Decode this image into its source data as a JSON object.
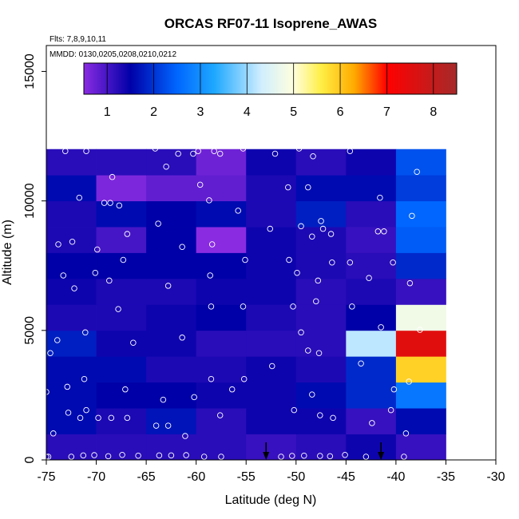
{
  "chart_data": {
    "type": "heatmap",
    "title": "ORCAS RF07-11 Isoprene_AWAS",
    "notes": [
      "Flts: 7,8,9,10,11",
      "MMDD: 0130,0205,0208,0210,0212"
    ],
    "xlabel": "Latitude (deg N)",
    "ylabel": "Altitude (m)",
    "xlim": [
      -75,
      -30
    ],
    "ylim": [
      0,
      16000
    ],
    "x_ticks": [
      -75,
      -70,
      -65,
      -60,
      -55,
      -50,
      -45,
      -40,
      -35,
      -30
    ],
    "x_tick_labels": [
      "-75",
      "-70",
      "-65",
      "-60",
      "-55",
      "-50",
      "-45",
      "-40",
      "-35",
      "-30"
    ],
    "y_ticks": [
      0,
      5000,
      10000,
      15000
    ],
    "y_tick_labels": [
      "0",
      "5000",
      "10000",
      "15000"
    ],
    "x_bin_edges": [
      -75,
      -70,
      -65,
      -60,
      -55,
      -50,
      -45,
      -40,
      -35
    ],
    "y_bin_edges": [
      0,
      1000,
      2000,
      3000,
      4000,
      5000,
      6000,
      7000,
      8000,
      9000,
      10000,
      11000,
      12000
    ],
    "grid": [
      [
        1.2,
        1.2,
        1.2,
        1.2,
        1.1,
        1.2,
        1.4,
        1.1
      ],
      [
        1.6,
        1.3,
        1.7,
        1.2,
        1.4,
        1.4,
        1.1,
        1.6
      ],
      [
        1.6,
        1.5,
        1.5,
        1.4,
        1.4,
        1.6,
        1.9,
        2.7
      ],
      [
        1.6,
        1.6,
        1.3,
        1.3,
        1.4,
        1.3,
        1.9,
        5.9
      ],
      [
        1.8,
        1.4,
        1.4,
        1.2,
        1.2,
        1.2,
        4.2,
        7.5
      ],
      [
        1.3,
        1.3,
        1.4,
        1.5,
        1.3,
        1.2,
        1.5,
        4.8
      ],
      [
        1.4,
        1.3,
        1.3,
        1.4,
        1.4,
        1.2,
        1.3,
        1.1
      ],
      [
        1.5,
        1.5,
        1.5,
        1.5,
        1.4,
        1.3,
        1.2,
        1.9
      ],
      [
        1.3,
        1.0,
        1.5,
        0.4,
        1.4,
        1.3,
        1.1,
        2.4
      ],
      [
        1.3,
        1.6,
        1.5,
        1.6,
        1.3,
        1.8,
        1.2,
        2.5
      ],
      [
        1.6,
        0.6,
        0.8,
        0.8,
        1.3,
        1.6,
        1.6,
        2.1
      ],
      [
        1.2,
        1.2,
        1.2,
        0.7,
        1.4,
        1.2,
        1.4,
        2.3
      ]
    ],
    "colorbar": {
      "range": [
        0.5,
        8.5
      ],
      "ticks": [
        1,
        2,
        3,
        4,
        5,
        6,
        7,
        8
      ],
      "tick_labels": [
        "1",
        "2",
        "3",
        "4",
        "5",
        "6",
        "7",
        "8"
      ],
      "stops": [
        {
          "v": 0.5,
          "c": "#8a2be2"
        },
        {
          "v": 1.5,
          "c": "#0000a8"
        },
        {
          "v": 2.5,
          "c": "#0066ff"
        },
        {
          "v": 3.3,
          "c": "#1ea8ff"
        },
        {
          "v": 4.3,
          "c": "#cfeeff"
        },
        {
          "v": 5.0,
          "c": "#ffffdd"
        },
        {
          "v": 5.6,
          "c": "#ffee44"
        },
        {
          "v": 6.3,
          "c": "#ffaa00"
        },
        {
          "v": 7.0,
          "c": "#ff0000"
        },
        {
          "v": 8.5,
          "c": "#a52a2a"
        }
      ]
    },
    "arrows_latitude": [
      -53,
      -41.5
    ],
    "samples": [
      [
        -75,
        0
      ],
      [
        -74.8,
        0
      ],
      [
        -72.5,
        0
      ],
      [
        -71.3,
        50
      ],
      [
        -70.2,
        60
      ],
      [
        -68.8,
        20
      ],
      [
        -67.4,
        70
      ],
      [
        -65.8,
        40
      ],
      [
        -63.7,
        50
      ],
      [
        -62.5,
        50
      ],
      [
        -61.0,
        60
      ],
      [
        -59.2,
        0
      ],
      [
        -57.5,
        0
      ],
      [
        -51.5,
        0
      ],
      [
        -50.4,
        30
      ],
      [
        -49.2,
        40
      ],
      [
        -47.6,
        30
      ],
      [
        -46.6,
        20
      ],
      [
        -45.1,
        70
      ],
      [
        -43.0,
        0
      ],
      [
        -39.2,
        0
      ],
      [
        -74.3,
        900
      ],
      [
        -72.8,
        1700
      ],
      [
        -71.6,
        1500
      ],
      [
        -71.0,
        1800
      ],
      [
        -69.8,
        1500
      ],
      [
        -68.5,
        1500
      ],
      [
        -66.9,
        1500
      ],
      [
        -64.0,
        1200
      ],
      [
        -62.8,
        1200
      ],
      [
        -61.1,
        800
      ],
      [
        -60.2,
        2300
      ],
      [
        -57.6,
        1600
      ],
      [
        -56.4,
        2600
      ],
      [
        -50.2,
        1800
      ],
      [
        -48.4,
        2400
      ],
      [
        -47.6,
        1600
      ],
      [
        -46.3,
        1500
      ],
      [
        -42.4,
        1300
      ],
      [
        -40.5,
        1800
      ],
      [
        -39.0,
        900
      ],
      [
        -75.0,
        2500
      ],
      [
        -74.6,
        4000
      ],
      [
        -72.9,
        2700
      ],
      [
        -71.2,
        3000
      ],
      [
        -67.1,
        2600
      ],
      [
        -63.3,
        2200
      ],
      [
        -58.5,
        3000
      ],
      [
        -55.2,
        3000
      ],
      [
        -52.4,
        3500
      ],
      [
        -48.8,
        4100
      ],
      [
        -47.7,
        4000
      ],
      [
        -43.5,
        3600
      ],
      [
        -40.2,
        2600
      ],
      [
        -38.7,
        2900
      ],
      [
        -73.9,
        4500
      ],
      [
        -71.1,
        4800
      ],
      [
        -67.8,
        5700
      ],
      [
        -66.3,
        4400
      ],
      [
        -61.4,
        4600
      ],
      [
        -58.5,
        5800
      ],
      [
        -55.3,
        5800
      ],
      [
        -50.3,
        5800
      ],
      [
        -49.5,
        4800
      ],
      [
        -48.0,
        6000
      ],
      [
        -44.4,
        5800
      ],
      [
        -41.5,
        5000
      ],
      [
        -37.6,
        4900
      ],
      [
        -73.3,
        7000
      ],
      [
        -72.2,
        6500
      ],
      [
        -70.1,
        7100
      ],
      [
        -68.7,
        6800
      ],
      [
        -67.3,
        7600
      ],
      [
        -62.8,
        6600
      ],
      [
        -58.6,
        7000
      ],
      [
        -55.1,
        7600
      ],
      [
        -50.7,
        7600
      ],
      [
        -49.9,
        7100
      ],
      [
        -47.8,
        6800
      ],
      [
        -46.4,
        7500
      ],
      [
        -44.6,
        7500
      ],
      [
        -42.7,
        6900
      ],
      [
        -40.3,
        7500
      ],
      [
        -38.6,
        6700
      ],
      [
        -73.8,
        8200
      ],
      [
        -72.4,
        8300
      ],
      [
        -69.9,
        8000
      ],
      [
        -66.9,
        8600
      ],
      [
        -63.8,
        9000
      ],
      [
        -61.4,
        8100
      ],
      [
        -58.4,
        8200
      ],
      [
        -52.6,
        8800
      ],
      [
        -49.5,
        8900
      ],
      [
        -48.4,
        8500
      ],
      [
        -47.3,
        8800
      ],
      [
        -46.5,
        8600
      ],
      [
        -41.8,
        8700
      ],
      [
        -41.2,
        8700
      ],
      [
        -38.4,
        9300
      ],
      [
        -71.7,
        10000
      ],
      [
        -69.2,
        9800
      ],
      [
        -68.6,
        9800
      ],
      [
        -67.7,
        9700
      ],
      [
        -63.0,
        11200
      ],
      [
        -59.6,
        10500
      ],
      [
        -58.7,
        9900
      ],
      [
        -55.8,
        9500
      ],
      [
        -50.8,
        10400
      ],
      [
        -48.8,
        10400
      ],
      [
        -47.5,
        9100
      ],
      [
        -41.6,
        10000
      ],
      [
        -37.9,
        11000
      ],
      [
        -73.1,
        11800
      ],
      [
        -71.0,
        11800
      ],
      [
        -68.4,
        10800
      ],
      [
        -64.1,
        11900
      ],
      [
        -61.8,
        11700
      ],
      [
        -60.3,
        11700
      ],
      [
        -59.8,
        11800
      ],
      [
        -58.2,
        11800
      ],
      [
        -57.6,
        11700
      ],
      [
        -55.3,
        11900
      ],
      [
        -52.1,
        11700
      ],
      [
        -49.7,
        11900
      ],
      [
        -48.3,
        11600
      ],
      [
        -44.6,
        11800
      ]
    ]
  }
}
